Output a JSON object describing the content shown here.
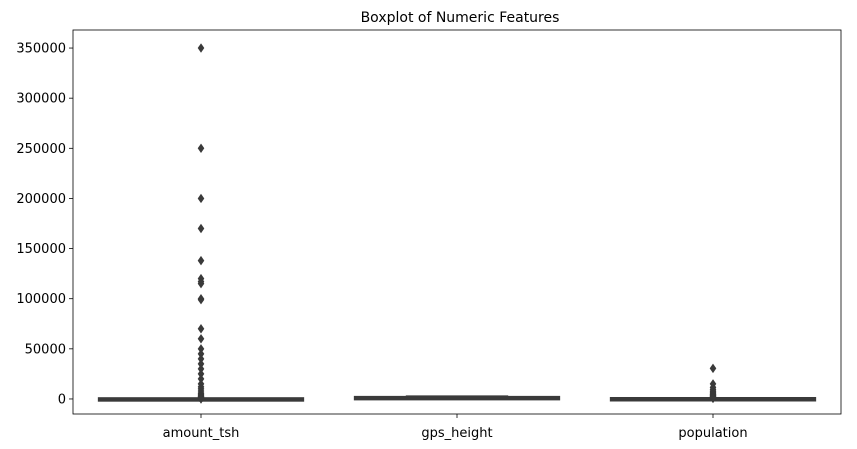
{
  "chart_data": {
    "type": "boxplot",
    "title": "Boxplot of Numeric Features",
    "xlabel": "",
    "ylabel": "",
    "categories": [
      "amount_tsh",
      "gps_height",
      "population"
    ],
    "y_ticks": [
      0,
      50000,
      100000,
      150000,
      200000,
      250000,
      300000,
      350000
    ],
    "y_tick_labels": [
      "0",
      "50000",
      "100000",
      "150000",
      "200000",
      "250000",
      "300000",
      "350000"
    ],
    "ylim": [
      -15000,
      368000
    ],
    "grid": false,
    "legend": "none",
    "box_color": "#3a3a3a",
    "boxes": [
      {
        "name": "amount_tsh",
        "q1": 0,
        "median": 0,
        "q3": 20,
        "whisker_low": 0,
        "whisker_high": 50,
        "outliers": [
          350000,
          250000,
          200000,
          170000,
          138000,
          120000,
          117000,
          115000,
          100000,
          99000,
          70000,
          60000,
          50000,
          45000,
          40000,
          35000,
          30000,
          25000,
          20000,
          15000,
          12000,
          10000,
          8000,
          6000,
          5000,
          4000,
          3000,
          2500,
          2000,
          1500,
          1000,
          500,
          300,
          200,
          100
        ]
      },
      {
        "name": "gps_height",
        "q1": 0,
        "median": 369,
        "q3": 1319,
        "whisker_low": -90,
        "whisker_high": 2770,
        "outliers": []
      },
      {
        "name": "population",
        "q1": 0,
        "median": 25,
        "q3": 215,
        "whisker_low": 0,
        "whisker_high": 537,
        "outliers": [
          30500,
          15000,
          11500,
          9500,
          8000,
          7000,
          6000,
          5000,
          4500,
          4000,
          3500,
          3000,
          2500,
          2000,
          1800,
          1500,
          1200,
          1000,
          800,
          600
        ]
      }
    ]
  }
}
